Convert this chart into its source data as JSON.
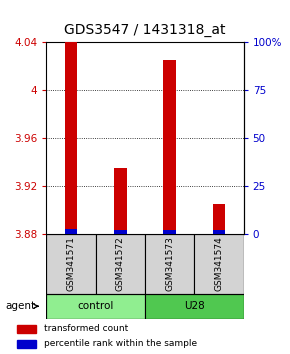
{
  "title": "GDS3547 / 1431318_at",
  "samples": [
    "GSM341571",
    "GSM341572",
    "GSM341573",
    "GSM341574"
  ],
  "red_values": [
    4.04,
    3.935,
    4.025,
    3.905
  ],
  "blue_values": [
    3.884,
    3.883,
    3.883,
    3.883
  ],
  "baseline": 3.88,
  "ylim": [
    3.88,
    4.04
  ],
  "yticks_left": [
    3.88,
    3.92,
    3.96,
    4.0,
    4.04
  ],
  "yticks_right": [
    0,
    25,
    50,
    75,
    100
  ],
  "yticks_right_labels": [
    "0",
    "25",
    "50",
    "75",
    "100%"
  ],
  "groups": [
    {
      "label": "control",
      "samples": [
        0,
        1
      ],
      "color": "#90EE90"
    },
    {
      "label": "U28",
      "samples": [
        2,
        3
      ],
      "color": "#50C850"
    }
  ],
  "agent_label": "agent",
  "bar_width": 0.25,
  "red_color": "#CC0000",
  "blue_color": "#0000CC",
  "label_color_left": "#CC0000",
  "label_color_right": "#0000CC",
  "title_fontsize": 10,
  "tick_fontsize": 7.5,
  "sample_label_fontsize": 6.5,
  "legend_fontsize": 6.5,
  "agent_fontsize": 7.5
}
